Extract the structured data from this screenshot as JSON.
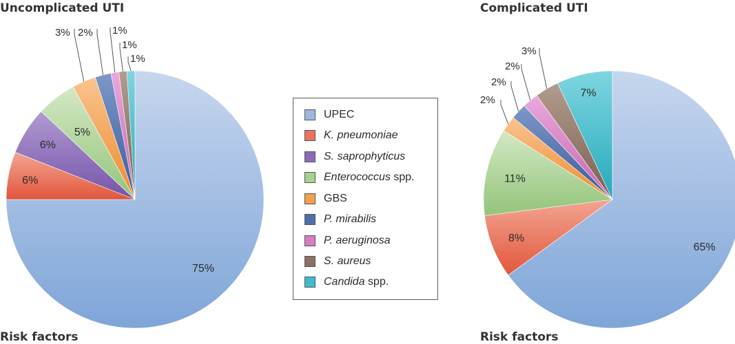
{
  "chart_data": [
    {
      "type": "pie",
      "title": "Uncomplicated UTI",
      "categories": [
        "UPEC",
        "K. pneumoniae",
        "S. saprophyticus",
        "Enterococcus spp.",
        "GBS",
        "P. mirabilis",
        "P. aeruginosa",
        "S. aureus",
        "Candida spp."
      ],
      "values": [
        75,
        6,
        6,
        5,
        3,
        2,
        1,
        1,
        1
      ],
      "labels": [
        "75%",
        "6%",
        "6%",
        "5%",
        "3%",
        "2%",
        "1%",
        "1%",
        "1%"
      ]
    },
    {
      "type": "pie",
      "title": "Complicated UTI",
      "categories": [
        "UPEC",
        "K. pneumoniae",
        "S. saprophyticus",
        "Enterococcus spp.",
        "GBS",
        "P. mirabilis",
        "P. aeruginosa",
        "S. aureus",
        "Candida spp."
      ],
      "values": [
        65,
        8,
        0,
        11,
        2,
        2,
        2,
        3,
        7
      ],
      "labels": [
        "65%",
        "8%",
        "",
        "11%",
        "2%",
        "2%",
        "2%",
        "3%",
        "7%"
      ]
    }
  ],
  "legend": {
    "items": [
      {
        "name": "UPEC",
        "suffix": "",
        "italic": false,
        "color": "#9db8e0"
      },
      {
        "name": "K. pneumoniae",
        "suffix": "",
        "italic": true,
        "color": "#e8745e"
      },
      {
        "name": "S. saprophyticus",
        "suffix": "",
        "italic": true,
        "color": "#8a6bb8"
      },
      {
        "name": "Enterococcus",
        "suffix": " spp.",
        "italic": true,
        "color": "#a8d08e"
      },
      {
        "name": "GBS",
        "suffix": "",
        "italic": false,
        "color": "#f4a04e"
      },
      {
        "name": "P. mirabilis",
        "suffix": "",
        "italic": true,
        "color": "#4f6fa8"
      },
      {
        "name": "P. aeruginosa",
        "suffix": "",
        "italic": true,
        "color": "#d47fc0"
      },
      {
        "name": "S. aureus",
        "suffix": "",
        "italic": true,
        "color": "#8c7263"
      },
      {
        "name": "Candida",
        "suffix": " spp.",
        "italic": true,
        "color": "#3fbccb"
      }
    ]
  },
  "footer": {
    "left": "Risk factors",
    "right": "Risk factors"
  }
}
